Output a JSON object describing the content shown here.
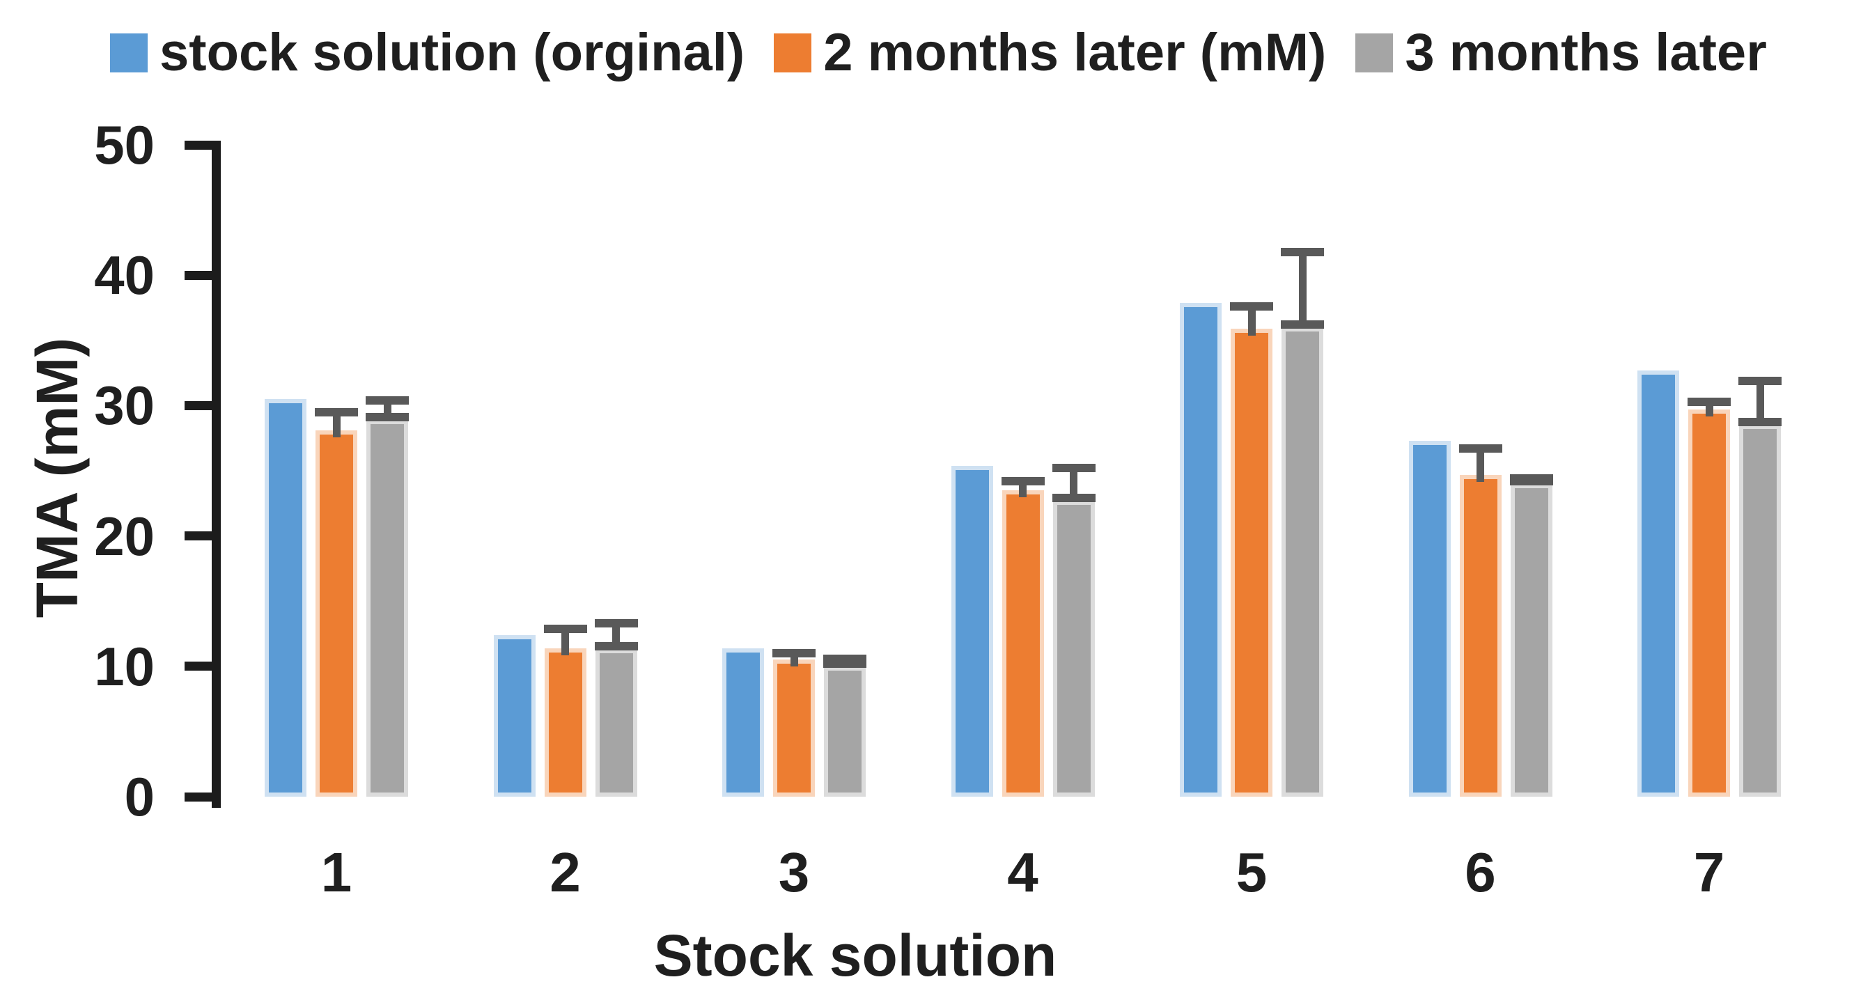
{
  "chart_data": {
    "type": "bar",
    "title": "",
    "xlabel": "Stock solution",
    "ylabel": "TMA (mM)",
    "ylim": [
      0,
      50
    ],
    "yticks": [
      0,
      10,
      20,
      30,
      40,
      50
    ],
    "categories": [
      "1",
      "2",
      "3",
      "4",
      "5",
      "6",
      "7"
    ],
    "series": [
      {
        "name": "stock solution (orginal)",
        "color": "#5B9BD5",
        "edge_tint": "#cfe1f2",
        "values": [
          30.5,
          12.4,
          11.4,
          25.4,
          37.9,
          27.3,
          32.7
        ],
        "errors": null
      },
      {
        "name": "2 months later (mM)",
        "color": "#ED7D31",
        "edge_tint": "#f9d5bb",
        "values": [
          28.1,
          11.4,
          10.5,
          23.5,
          35.9,
          24.7,
          29.7
        ],
        "errors": [
          1.4,
          1.5,
          0.5,
          0.7,
          1.7,
          2.0,
          0.6
        ],
        "error_caps": "top"
      },
      {
        "name": "3 months later",
        "color": "#A5A5A5",
        "edge_tint": "#dcdcdc",
        "values": [
          28.9,
          11.3,
          10.0,
          22.7,
          36.0,
          24.0,
          28.5
        ],
        "errors": [
          1.5,
          2.0,
          0.6,
          2.5,
          5.8,
          0.4,
          3.4
        ],
        "error_caps": "both"
      }
    ],
    "error_bar_color": "#595959",
    "axis_color": "#1c1c1c",
    "legend_position": "top",
    "grid": false
  }
}
